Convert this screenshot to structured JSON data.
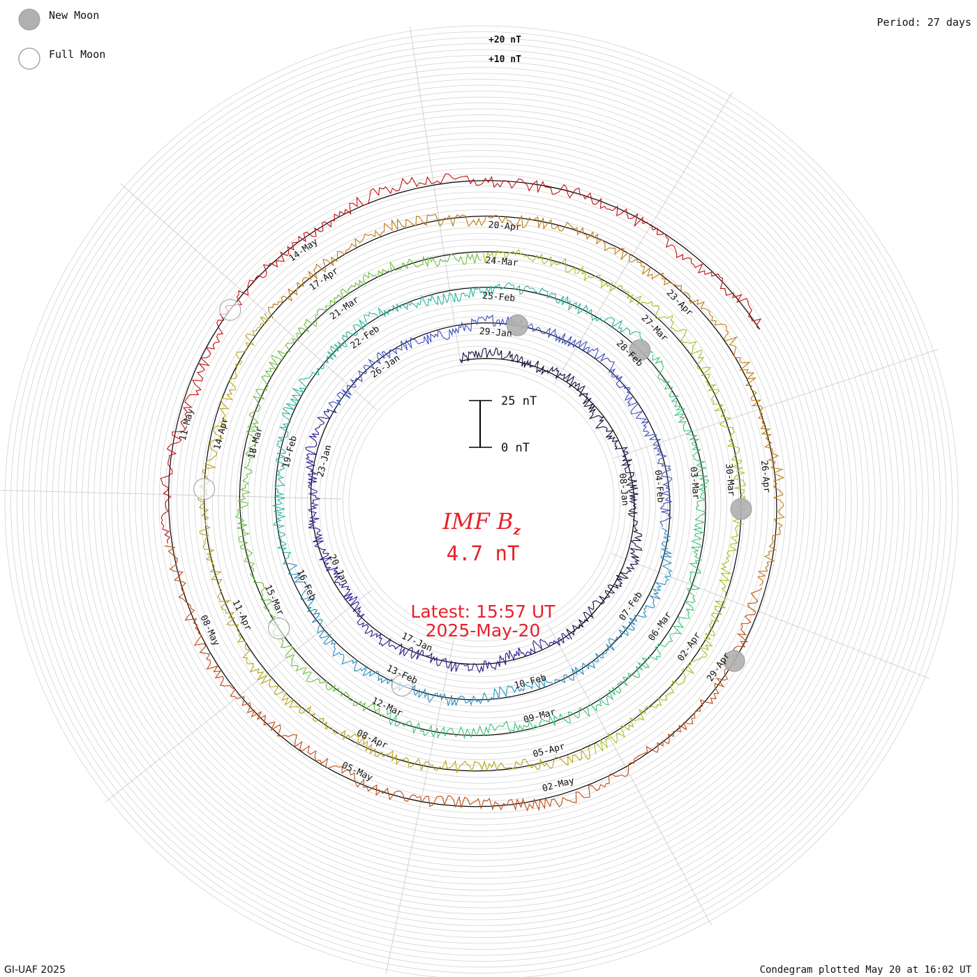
{
  "legend": {
    "new_moon": "New Moon",
    "full_moon": "Full Moon",
    "new_moon_color": "#b0b0b0",
    "full_moon_color": "#ffffff"
  },
  "period": "Period: 27 days",
  "credit": "GI-UAF 2025",
  "plotted": "Condegram plotted May 20 at 16:02 UT",
  "center": {
    "title_main": "IMF B",
    "title_sub": "z",
    "value": "4.7 nT",
    "latest_line1": "Latest: 15:57 UT",
    "latest_line2": "2025-May-20",
    "color": "#e8202a"
  },
  "scale_bar": {
    "top_label": "25 nT",
    "bottom_label": "0 nT"
  },
  "ring_labels": [
    "+20 nT",
    "+10 nT"
  ],
  "chart_data": {
    "type": "line",
    "title": "IMF Bz",
    "period_days": 27,
    "layout": "spiral condegram, one revolution per 27 days, starting 2025-Jan-01, outward in time",
    "y_unit": "nT",
    "scale_bar_nT": [
      0,
      25
    ],
    "latest": {
      "value_nT": 4.7,
      "time": "2025-May-20 15:57 UT"
    },
    "series": [
      {
        "turn": 1,
        "start": "2025-Jan-01",
        "color": "#1a0a3c"
      },
      {
        "turn": 2,
        "start": "2025-Jan-28",
        "color": "#2a1a8c"
      },
      {
        "turn": 3,
        "start": "2025-Feb-24",
        "color": "#3d4ec0"
      },
      {
        "turn": 4,
        "start": "2025-Mar-23",
        "color": "#2a8fbf"
      },
      {
        "turn": 5,
        "start": "2025-Apr-19",
        "color": "#2ab5a0"
      },
      {
        "turn": 6,
        "start": "2025-May-16",
        "color": "#3cc47a"
      }
    ],
    "spiral_colors": [
      "#1a0a3c",
      "#2a1a8c",
      "#3d4ec0",
      "#2a8fbf",
      "#2ab5a0",
      "#3cc47a",
      "#6cc040",
      "#a8c020",
      "#b8a418",
      "#c07a10",
      "#c04a10",
      "#c01010"
    ],
    "date_labels": [
      {
        "text": "08-Jan",
        "day": 7
      },
      {
        "text": "17-Jan",
        "day": 16
      },
      {
        "text": "20-Jan",
        "day": 19
      },
      {
        "text": "23-Jan",
        "day": 22
      },
      {
        "text": "26-Jan",
        "day": 25
      },
      {
        "text": "29-Jan",
        "day": 28
      },
      {
        "text": "04-Feb",
        "day": 34
      },
      {
        "text": "07-Feb",
        "day": 37
      },
      {
        "text": "10-Feb",
        "day": 40
      },
      {
        "text": "13-Feb",
        "day": 43
      },
      {
        "text": "16-Feb",
        "day": 46
      },
      {
        "text": "19-Feb",
        "day": 49
      },
      {
        "text": "22-Feb",
        "day": 52
      },
      {
        "text": "25-Feb",
        "day": 55
      },
      {
        "text": "28-Feb",
        "day": 58
      },
      {
        "text": "03-Mar",
        "day": 61
      },
      {
        "text": "06-Mar",
        "day": 64
      },
      {
        "text": "09-Mar",
        "day": 67
      },
      {
        "text": "12-Mar",
        "day": 70
      },
      {
        "text": "15-Mar",
        "day": 73
      },
      {
        "text": "18-Mar",
        "day": 76
      },
      {
        "text": "21-Mar",
        "day": 79
      },
      {
        "text": "24-Mar",
        "day": 82
      },
      {
        "text": "27-Mar",
        "day": 85
      },
      {
        "text": "30-Mar",
        "day": 88
      },
      {
        "text": "02-Apr",
        "day": 91
      },
      {
        "text": "05-Apr",
        "day": 94
      },
      {
        "text": "08-Apr",
        "day": 97
      },
      {
        "text": "11-Apr",
        "day": 100
      },
      {
        "text": "14-Apr",
        "day": 103
      },
      {
        "text": "17-Apr",
        "day": 106
      },
      {
        "text": "20-Apr",
        "day": 109
      },
      {
        "text": "23-Apr",
        "day": 112
      },
      {
        "text": "26-Apr",
        "day": 115
      },
      {
        "text": "29-Apr",
        "day": 118
      },
      {
        "text": "02-May",
        "day": 121
      },
      {
        "text": "05-May",
        "day": 124
      },
      {
        "text": "08-May",
        "day": 127
      },
      {
        "text": "11-May",
        "day": 130
      },
      {
        "text": "14-May",
        "day": 133
      }
    ],
    "moon_phases": [
      {
        "type": "new",
        "day": 28.5
      },
      {
        "type": "full",
        "day": 42.9
      },
      {
        "type": "new",
        "day": 58.1
      },
      {
        "type": "full",
        "day": 72.5
      },
      {
        "type": "new",
        "day": 88.5
      },
      {
        "type": "full",
        "day": 102.1
      },
      {
        "type": "new",
        "day": 117.8
      },
      {
        "type": "full",
        "day": 131.7
      }
    ]
  }
}
